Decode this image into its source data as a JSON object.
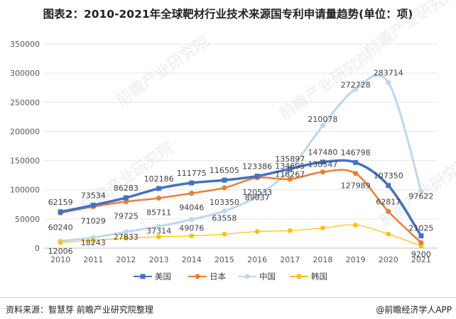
{
  "header": {
    "title": "图表2：2010-2021年全球靶材行业技术来源国专利申请量趋势(单位：项)"
  },
  "footer": {
    "source": "资料来源：智慧芽 前瞻产业研究院整理",
    "credit": "@前瞻经济学人APP"
  },
  "chart_data": {
    "type": "line",
    "title": "图表2：2010-2021年全球靶材行业技术来源国专利申请量趋势(单位：项)",
    "xlabel": "",
    "ylabel": "",
    "ylim": [
      0,
      350000
    ],
    "yticks": [
      0,
      50000,
      100000,
      150000,
      200000,
      250000,
      300000,
      350000
    ],
    "ytick_labels": [
      "0",
      "50000",
      "100000",
      "150000",
      "200000",
      "250000",
      "300000",
      "350000"
    ],
    "grid": true,
    "legend_position": "bottom",
    "categories": [
      "2010",
      "2011",
      "2012",
      "2013",
      "2014",
      "2015",
      "2016",
      "2017",
      "2018",
      "2019",
      "2020",
      "2021"
    ],
    "series": [
      {
        "name": "美国",
        "color": "#4472c4",
        "marker": "square",
        "values": [
          62159,
          73534,
          86283,
          102186,
          111775,
          116505,
          123386,
          135897,
          147480,
          146798,
          107350,
          21025
        ],
        "labels": [
          "62159",
          "73534",
          "86283",
          "102186",
          "111775",
          "116505",
          "123386",
          "135897",
          "147480",
          "146798",
          "107350",
          "21025"
        ]
      },
      {
        "name": "日本",
        "color": "#ed7d31",
        "marker": "circle",
        "values": [
          60240,
          71029,
          79725,
          85711,
          94046,
          103350,
          120533,
          118267,
          130547,
          127989,
          62817,
          9200
        ],
        "labels": [
          "60240",
          "71029",
          "79725",
          "85711",
          "94046",
          "103350",
          "120533",
          "118267",
          "130547",
          "127989",
          "62817",
          "9200"
        ]
      },
      {
        "name": "中国",
        "color": "#bdd7ee",
        "marker": "circle",
        "values": [
          12006,
          18243,
          27833,
          37314,
          49076,
          63558,
          89037,
          134695,
          210078,
          272728,
          283714,
          97622
        ],
        "labels": [
          "12006",
          "18243",
          "27833",
          "37314",
          "49076",
          "63558",
          "89037",
          "134695",
          "210078",
          "272728",
          "283714",
          "97622"
        ]
      },
      {
        "name": "韩国",
        "color": "#ffc000",
        "marker": "circle",
        "values": [
          9500,
          13500,
          17000,
          19500,
          21000,
          24000,
          28500,
          30000,
          34500,
          39500,
          24000,
          3500
        ],
        "labels": []
      }
    ],
    "watermark": "前瞻产业研究院"
  }
}
